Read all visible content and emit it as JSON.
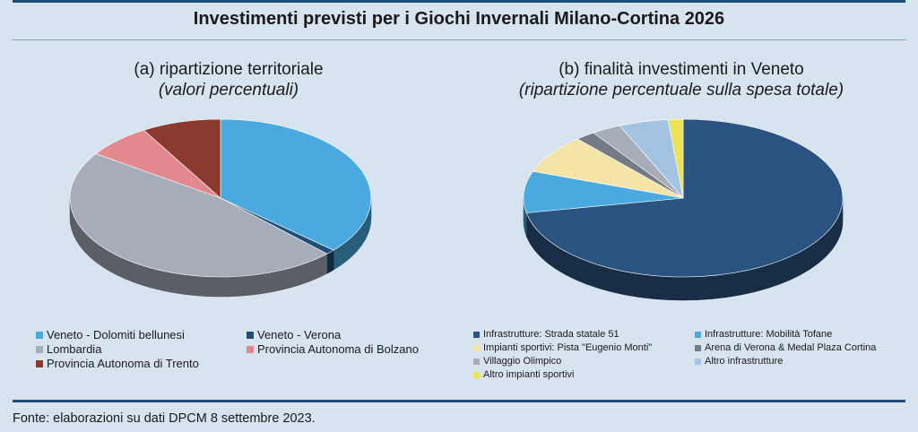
{
  "title": "Investimenti previsti per i Giochi Invernali Milano-Cortina 2026",
  "footer": "Fonte: elaborazioni su dati DPCM 8 settembre 2023.",
  "colors": {
    "background": "#d7e4ef",
    "rule": "#1f4e79"
  },
  "chart_data": [
    {
      "type": "pie",
      "title": "(a) ripartizione territoriale",
      "subtitle": "(valori percentuali)",
      "style": "3d",
      "slices": [
        {
          "label": "Veneto - Dolomiti bellunesi",
          "value": 36.5,
          "color": "#4aaae0"
        },
        {
          "label": "Veneto - Verona",
          "value": 1.0,
          "color": "#1f4e79"
        },
        {
          "label": "Lombardia",
          "value": 47.0,
          "color": "#a6adb8"
        },
        {
          "label": "Provincia Autonoma di Bolzano",
          "value": 7.0,
          "color": "#e48890"
        },
        {
          "label": "Provincia Autonoma di Trento",
          "value": 8.5,
          "color": "#8b3a2f"
        }
      ]
    },
    {
      "type": "pie",
      "title": "(b) finalità investimenti in Veneto",
      "subtitle": "(ripartizione percentuale sulla spesa totale)",
      "style": "3d",
      "slices": [
        {
          "label": "Infrastrutture: Strada statale 51",
          "value": 72.0,
          "color": "#2b5381"
        },
        {
          "label": "Infrastrutture: Mobilità Tofane",
          "value": 8.5,
          "color": "#4aaae0"
        },
        {
          "label": "Impianti sportivi: Pista \"Eugenio Monti\"",
          "value": 8.0,
          "color": "#f5e4a8"
        },
        {
          "label": "Arena di Verona & Medal Plaza Cortina",
          "value": 2.0,
          "color": "#747b85"
        },
        {
          "label": "Villaggio Olimpico",
          "value": 3.0,
          "color": "#a6adb8"
        },
        {
          "label": "Altro infrastrutture",
          "value": 5.0,
          "color": "#a3c3e3"
        },
        {
          "label": "Altro impianti sportivi",
          "value": 1.5,
          "color": "#ebe355"
        }
      ]
    }
  ]
}
